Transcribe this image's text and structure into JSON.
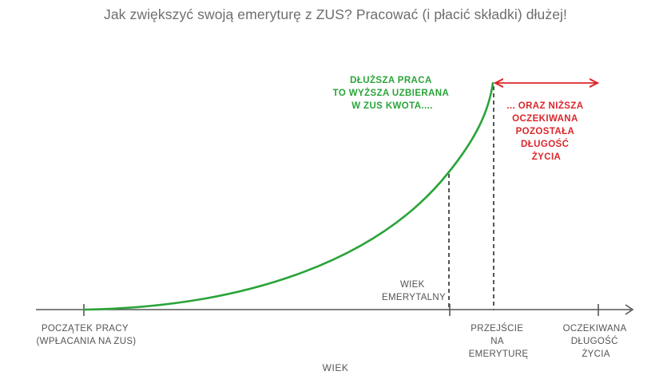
{
  "title": "Jak zwiększyć swoją emeryturę z ZUS? Pracować (i płacić składki) dłużej!",
  "axis": {
    "name": "WIEK"
  },
  "ticks": {
    "start": [
      "POCZĄTEK PRACY",
      "(WPŁACANIA NA ZUS)"
    ],
    "retirement_age": [
      "WIEK",
      "EMERYTALNY"
    ],
    "transition": [
      "PRZEJŚCIE",
      "NA",
      "EMERYTURĘ"
    ],
    "life_expectancy": [
      "OCZEKIWANA",
      "DŁUGOŚĆ",
      "ŻYCIA"
    ]
  },
  "annotations": {
    "longer_work": [
      "DŁUŻSZA PRACA",
      "TO WYŻSZA UZBIERANA",
      "W ZUS KWOTA...."
    ],
    "shorter_life": [
      "... ORAZ NIŻSZA",
      "OCZEKIWANA",
      "POZOSTAŁA",
      "DŁUGOŚĆ",
      "ŻYCIA"
    ]
  },
  "colors": {
    "curve": "#2aa43a",
    "arrow": "#d9262b",
    "axis": "#555555"
  }
}
